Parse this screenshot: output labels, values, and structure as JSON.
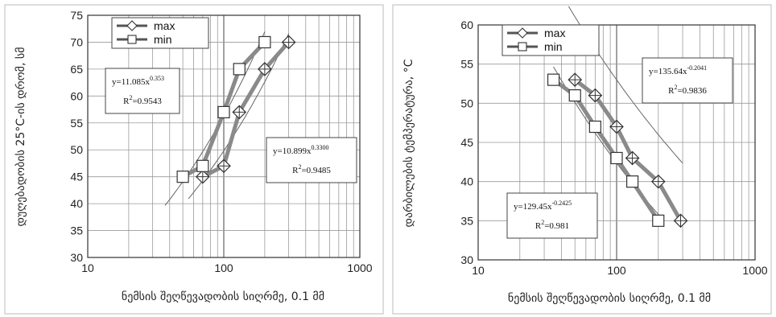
{
  "chart_data": [
    {
      "type": "line",
      "x_scale": "log",
      "xlim": [
        10,
        1000
      ],
      "ylim": [
        30,
        75
      ],
      "x_ticks": [
        "10",
        "100",
        "1000"
      ],
      "y_ticks": [
        "30",
        "35",
        "40",
        "45",
        "50",
        "55",
        "60",
        "65",
        "70",
        "75"
      ],
      "xlabel": "ნემსის შეღწევადობის სიღრმე, 0.1 მმ",
      "ylabel": "დუღებადობის 25°C-ის დრომ, სმ",
      "grid": true,
      "legend_placement": "top-left",
      "series": [
        {
          "name": "max",
          "marker": "diamond-cross",
          "x": [
            70,
            100,
            130,
            200,
            300
          ],
          "y": [
            45,
            47,
            57,
            65,
            70
          ]
        },
        {
          "name": "min",
          "marker": "square",
          "x": [
            50,
            70,
            100,
            130,
            200
          ],
          "y": [
            45,
            47,
            57,
            65,
            70
          ]
        }
      ],
      "trendlines": [
        {
          "a": 11.085,
          "b": 0.353,
          "x_range": [
            37,
            200
          ]
        },
        {
          "a": 10.899,
          "b": 0.33,
          "x_range": [
            55,
            300
          ]
        }
      ],
      "annotations": [
        {
          "equation_base": "y=11.085x",
          "exponent": "0.353",
          "r2_label": "R",
          "r2_value": "=0.9543"
        },
        {
          "equation_base": "y=10.899x",
          "exponent": "0.3300",
          "r2_label": "R",
          "r2_value": "=0.9485"
        }
      ]
    },
    {
      "type": "line",
      "x_scale": "log",
      "xlim": [
        10,
        1000
      ],
      "ylim": [
        30,
        60
      ],
      "x_ticks": [
        "10",
        "100",
        "1000"
      ],
      "y_ticks": [
        "30",
        "35",
        "40",
        "45",
        "50",
        "55",
        "60"
      ],
      "xlabel": "ნემსის შეღწევადობის სიღრმე, 0.1 მმ",
      "ylabel": "დარბილების ტემპერატურა, °C",
      "grid": true,
      "legend_placement": "top-left",
      "series": [
        {
          "name": "max",
          "marker": "diamond-cross",
          "x": [
            50,
            70,
            100,
            130,
            200,
            290
          ],
          "y": [
            53,
            51,
            47,
            43,
            40,
            35
          ]
        },
        {
          "name": "min",
          "marker": "square",
          "x": [
            35,
            50,
            70,
            100,
            130,
            200
          ],
          "y": [
            53,
            51,
            47,
            43,
            40,
            35
          ]
        }
      ],
      "trendlines": [
        {
          "a": 135.64,
          "b": -0.2041,
          "x_range": [
            45,
            300
          ]
        },
        {
          "a": 129.45,
          "b": -0.2425,
          "x_range": [
            35,
            210
          ]
        }
      ],
      "annotations": [
        {
          "equation_base": "y=135.64x",
          "exponent": "-0.2041",
          "r2_label": "R",
          "r2_value": "=0.9836"
        },
        {
          "equation_base": "y=129.45x",
          "exponent": "-0.2425",
          "r2_label": "R",
          "r2_value": "=0.981"
        }
      ]
    }
  ]
}
